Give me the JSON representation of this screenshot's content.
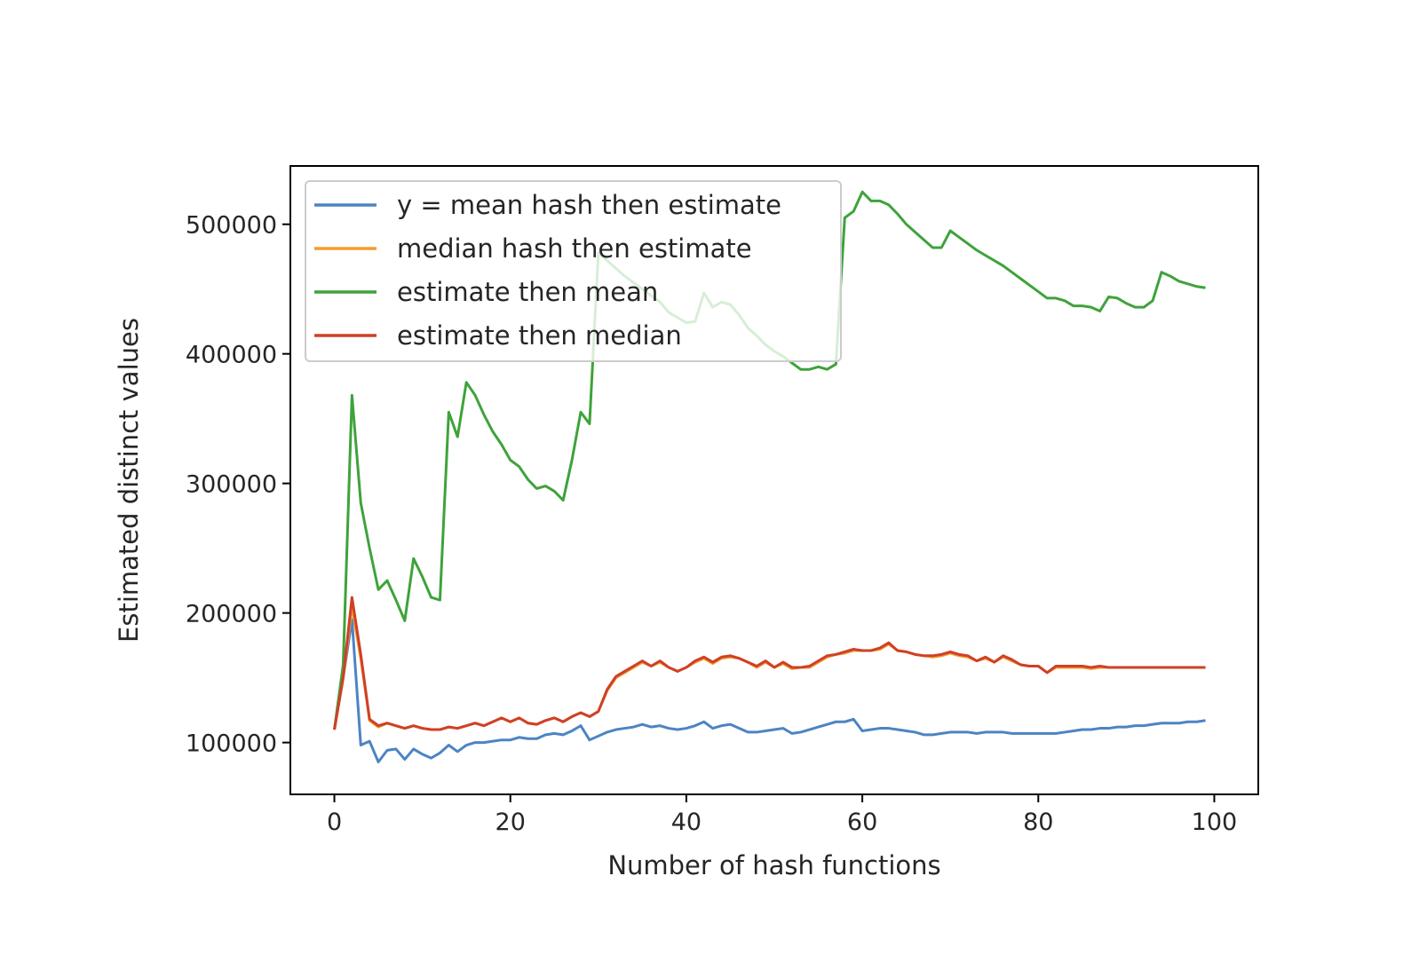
{
  "chart_data": {
    "type": "line",
    "title": "",
    "xlabel": "Number of hash functions",
    "ylabel": "Estimated distinct values",
    "xlim": [
      -5,
      105
    ],
    "ylim": [
      60000,
      545000
    ],
    "xticks": [
      0,
      20,
      40,
      60,
      80,
      100
    ],
    "yticks": [
      100000,
      200000,
      300000,
      400000,
      500000
    ],
    "grid": false,
    "legend_position": "upper-left",
    "series": [
      {
        "name": "y = mean hash then estimate",
        "color": "#4c84c4",
        "x": [
          0,
          1,
          2,
          3,
          4,
          5,
          6,
          7,
          8,
          9,
          10,
          11,
          12,
          13,
          14,
          15,
          16,
          17,
          18,
          19,
          20,
          21,
          22,
          23,
          24,
          25,
          26,
          27,
          28,
          29,
          30,
          31,
          32,
          33,
          34,
          35,
          36,
          37,
          38,
          39,
          40,
          41,
          42,
          43,
          44,
          45,
          46,
          47,
          48,
          49,
          50,
          51,
          52,
          53,
          54,
          55,
          56,
          57,
          58,
          59,
          60,
          61,
          62,
          63,
          64,
          65,
          66,
          67,
          68,
          69,
          70,
          71,
          72,
          73,
          74,
          75,
          76,
          77,
          78,
          79,
          80,
          81,
          82,
          83,
          84,
          85,
          86,
          87,
          88,
          89,
          90,
          91,
          92,
          93,
          94,
          95,
          96,
          97,
          98,
          99
        ],
        "values": [
          110000,
          150000,
          195000,
          98000,
          101000,
          85000,
          94000,
          95000,
          87000,
          95000,
          91000,
          88000,
          92000,
          98000,
          93000,
          98000,
          100000,
          100000,
          101000,
          102000,
          102000,
          104000,
          103000,
          103000,
          106000,
          107000,
          106000,
          109000,
          113000,
          102000,
          105000,
          108000,
          110000,
          111000,
          112000,
          114000,
          112000,
          113000,
          111000,
          110000,
          111000,
          113000,
          116000,
          111000,
          113000,
          114000,
          111000,
          108000,
          108000,
          109000,
          110000,
          111000,
          107000,
          108000,
          110000,
          112000,
          114000,
          116000,
          116000,
          118000,
          109000,
          110000,
          111000,
          111000,
          110000,
          109000,
          108000,
          106000,
          106000,
          107000,
          108000,
          108000,
          108000,
          107000,
          108000,
          108000,
          108000,
          107000,
          107000,
          107000,
          107000,
          107000,
          107000,
          108000,
          109000,
          110000,
          110000,
          111000,
          111000,
          112000,
          112000,
          113000,
          113000,
          114000,
          115000,
          115000,
          115000,
          116000,
          116000,
          117000
        ]
      },
      {
        "name": "median hash then estimate",
        "color": "#f39c2e",
        "x": [
          0,
          1,
          2,
          3,
          4,
          5,
          6,
          7,
          8,
          9,
          10,
          11,
          12,
          13,
          14,
          15,
          16,
          17,
          18,
          19,
          20,
          21,
          22,
          23,
          24,
          25,
          26,
          27,
          28,
          29,
          30,
          31,
          32,
          33,
          34,
          35,
          36,
          37,
          38,
          39,
          40,
          41,
          42,
          43,
          44,
          45,
          46,
          47,
          48,
          49,
          50,
          51,
          52,
          53,
          54,
          55,
          56,
          57,
          58,
          59,
          60,
          61,
          62,
          63,
          64,
          65,
          66,
          67,
          68,
          69,
          70,
          71,
          72,
          73,
          74,
          75,
          76,
          77,
          78,
          79,
          80,
          81,
          82,
          83,
          84,
          85,
          86,
          87,
          88,
          89,
          90,
          91,
          92,
          93,
          94,
          95,
          96,
          97,
          98,
          99
        ],
        "values": [
          110000,
          150000,
          205000,
          165000,
          117000,
          112000,
          115000,
          113000,
          111000,
          113000,
          111000,
          110000,
          110000,
          112000,
          111000,
          113000,
          115000,
          113000,
          116000,
          119000,
          116000,
          119000,
          115000,
          114000,
          117000,
          119000,
          116000,
          120000,
          123000,
          120000,
          124000,
          140000,
          150000,
          154000,
          158000,
          162000,
          159000,
          162000,
          158000,
          155000,
          158000,
          162000,
          165000,
          161000,
          165000,
          166000,
          165000,
          162000,
          158000,
          162000,
          158000,
          161000,
          157000,
          158000,
          158000,
          162000,
          166000,
          168000,
          169000,
          171000,
          171000,
          171000,
          172000,
          176000,
          171000,
          170000,
          168000,
          167000,
          166000,
          167000,
          169000,
          167000,
          166000,
          163000,
          165000,
          162000,
          166000,
          163000,
          160000,
          159000,
          159000,
          154000,
          158000,
          158000,
          158000,
          158000,
          157000,
          158000,
          158000,
          158000,
          158000,
          158000,
          158000,
          158000,
          158000,
          158000,
          158000,
          158000,
          158000,
          158000
        ]
      },
      {
        "name": "estimate then mean",
        "color": "#3ea33b",
        "x": [
          0,
          1,
          2,
          3,
          4,
          5,
          6,
          7,
          8,
          9,
          10,
          11,
          12,
          13,
          14,
          15,
          16,
          17,
          18,
          19,
          20,
          21,
          22,
          23,
          24,
          25,
          26,
          27,
          28,
          29,
          30,
          31,
          32,
          33,
          34,
          35,
          36,
          37,
          38,
          39,
          40,
          41,
          42,
          43,
          44,
          45,
          46,
          47,
          48,
          49,
          50,
          51,
          52,
          53,
          54,
          55,
          56,
          57,
          58,
          59,
          60,
          61,
          62,
          63,
          64,
          65,
          66,
          67,
          68,
          69,
          70,
          71,
          72,
          73,
          74,
          75,
          76,
          77,
          78,
          79,
          80,
          81,
          82,
          83,
          84,
          85,
          86,
          87,
          88,
          89,
          90,
          91,
          92,
          93,
          94,
          95,
          96,
          97,
          98,
          99
        ],
        "values": [
          110000,
          160000,
          368000,
          285000,
          250000,
          218000,
          225000,
          210000,
          194000,
          242000,
          228000,
          212000,
          210000,
          355000,
          336000,
          378000,
          368000,
          353000,
          340000,
          330000,
          318000,
          313000,
          303000,
          296000,
          298000,
          294000,
          287000,
          318000,
          355000,
          346000,
          478000,
          472000,
          466000,
          460000,
          455000,
          450000,
          445000,
          440000,
          432000,
          428000,
          424000,
          425000,
          447000,
          436000,
          440000,
          438000,
          430000,
          420000,
          414000,
          407000,
          402000,
          398000,
          393000,
          388000,
          388000,
          390000,
          388000,
          392000,
          505000,
          510000,
          525000,
          518000,
          518000,
          515000,
          508000,
          500000,
          494000,
          488000,
          482000,
          482000,
          495000,
          490000,
          485000,
          480000,
          476000,
          472000,
          468000,
          463000,
          458000,
          453000,
          448000,
          443000,
          443000,
          441000,
          437000,
          437000,
          436000,
          433000,
          444000,
          443000,
          439000,
          436000,
          436000,
          441000,
          463000,
          460000,
          456000,
          454000,
          452000,
          451000
        ]
      },
      {
        "name": "estimate then median",
        "color": "#cf4027",
        "x": [
          0,
          1,
          2,
          3,
          4,
          5,
          6,
          7,
          8,
          9,
          10,
          11,
          12,
          13,
          14,
          15,
          16,
          17,
          18,
          19,
          20,
          21,
          22,
          23,
          24,
          25,
          26,
          27,
          28,
          29,
          30,
          31,
          32,
          33,
          34,
          35,
          36,
          37,
          38,
          39,
          40,
          41,
          42,
          43,
          44,
          45,
          46,
          47,
          48,
          49,
          50,
          51,
          52,
          53,
          54,
          55,
          56,
          57,
          58,
          59,
          60,
          61,
          62,
          63,
          64,
          65,
          66,
          67,
          68,
          69,
          70,
          71,
          72,
          73,
          74,
          75,
          76,
          77,
          78,
          79,
          80,
          81,
          82,
          83,
          84,
          85,
          86,
          87,
          88,
          89,
          90,
          91,
          92,
          93,
          94,
          95,
          96,
          97,
          98,
          99
        ],
        "values": [
          110000,
          150000,
          212000,
          168000,
          118000,
          113000,
          115000,
          113000,
          111000,
          113000,
          111000,
          110000,
          110000,
          112000,
          111000,
          113000,
          115000,
          113000,
          116000,
          119000,
          116000,
          119000,
          115000,
          114000,
          117000,
          119000,
          116000,
          120000,
          123000,
          120000,
          124000,
          141000,
          151000,
          155000,
          159000,
          163000,
          159000,
          163000,
          158000,
          155000,
          158000,
          163000,
          166000,
          162000,
          166000,
          167000,
          165000,
          162000,
          159000,
          163000,
          158000,
          162000,
          158000,
          158000,
          159000,
          163000,
          167000,
          168000,
          170000,
          172000,
          171000,
          171000,
          173000,
          177000,
          171000,
          170000,
          168000,
          167000,
          167000,
          168000,
          170000,
          168000,
          167000,
          163000,
          166000,
          162000,
          167000,
          164000,
          160000,
          159000,
          159000,
          154000,
          159000,
          159000,
          159000,
          159000,
          158000,
          159000,
          158000,
          158000,
          158000,
          158000,
          158000,
          158000,
          158000,
          158000,
          158000,
          158000,
          158000,
          158000
        ]
      }
    ]
  }
}
